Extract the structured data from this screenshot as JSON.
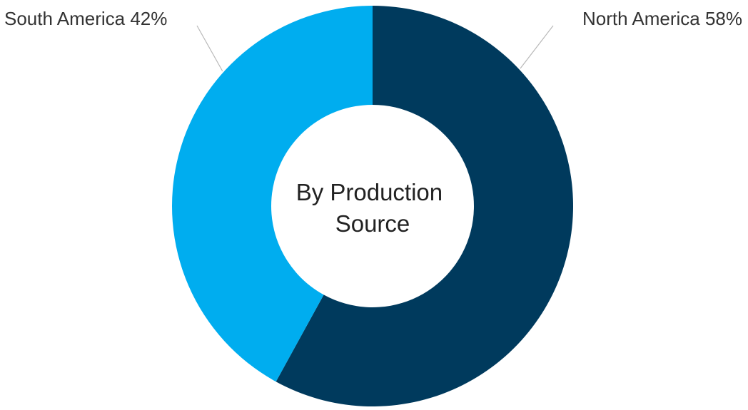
{
  "chart_data": {
    "type": "pie",
    "style": "donut",
    "center_label": [
      "By Production",
      "Source"
    ],
    "series": [
      {
        "name": "",
        "slices": [
          {
            "label": "North America",
            "value": 58,
            "label_text": "North America 58%",
            "color": "#003a5d"
          },
          {
            "label": "South America",
            "value": 42,
            "label_text": "South America 42%",
            "color": "#00adef"
          }
        ]
      }
    ],
    "start_angle_deg": 0,
    "direction": "clockwise",
    "legend": "none",
    "data_labels": "outside with leader lines"
  }
}
